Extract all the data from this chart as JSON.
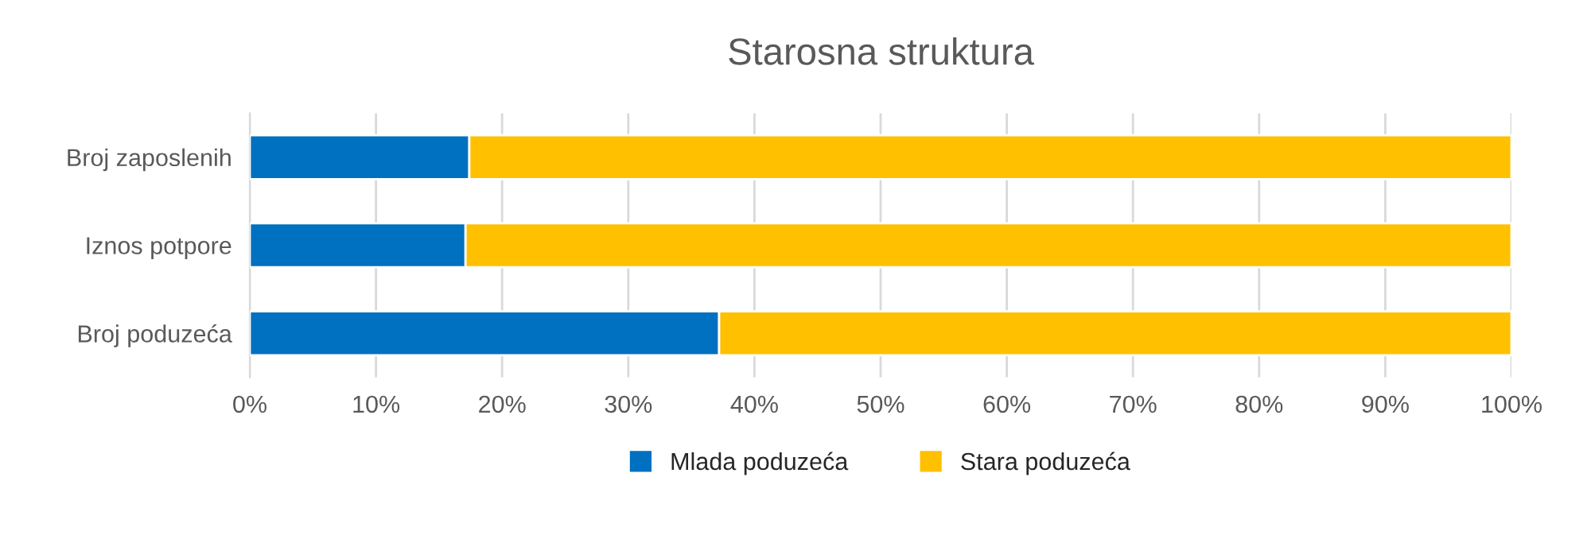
{
  "chart_data": {
    "type": "bar",
    "title": "Starosna struktura",
    "orientation": "horizontal",
    "stacked": true,
    "categories": [
      "Broj zaposlenih",
      "Iznos potpore",
      "Broj poduzeća"
    ],
    "series": [
      {
        "name": "Mlada poduzeća",
        "color": "#0070c0",
        "values": [
          17.4,
          17.1,
          37.2
        ]
      },
      {
        "name": "Stara poduzeća",
        "color": "#ffc000",
        "values": [
          82.6,
          82.9,
          62.8
        ]
      }
    ],
    "xlim": [
      0,
      100
    ],
    "xticks": [
      {
        "value": 0,
        "label": "0%"
      },
      {
        "value": 10,
        "label": "10%"
      },
      {
        "value": 20,
        "label": "20%"
      },
      {
        "value": 30,
        "label": "30%"
      },
      {
        "value": 40,
        "label": "40%"
      },
      {
        "value": 50,
        "label": "50%"
      },
      {
        "value": 60,
        "label": "60%"
      },
      {
        "value": 70,
        "label": "70%"
      },
      {
        "value": 80,
        "label": "80%"
      },
      {
        "value": 90,
        "label": "90%"
      },
      {
        "value": 100,
        "label": "100%"
      }
    ],
    "grid": "x",
    "legend": "bottom"
  }
}
